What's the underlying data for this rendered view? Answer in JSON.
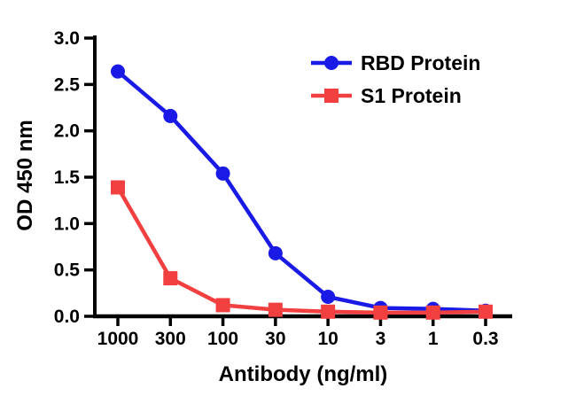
{
  "chart_data": {
    "type": "line",
    "xlabel": "Antibody (ng/ml)",
    "ylabel": "OD 450 nm",
    "categories": [
      "1000",
      "300",
      "100",
      "30",
      "10",
      "3",
      "1",
      "0.3"
    ],
    "x_axis_note": "equally spaced ordinal ticks, descending antibody concentration",
    "ylim": [
      0,
      3
    ],
    "ytick_step": 0.5,
    "ytick_labels": [
      "0.0",
      "0.5",
      "1.0",
      "1.5",
      "2.0",
      "2.5",
      "3.0"
    ],
    "grid": false,
    "legend_position": "inside-top-right",
    "axis_color": "#000000",
    "series": [
      {
        "name": "RBD Protein",
        "color": "#1a1ae6",
        "marker": "circle",
        "values": [
          2.64,
          2.16,
          1.54,
          0.68,
          0.21,
          0.09,
          0.08,
          0.06
        ]
      },
      {
        "name": "S1 Protein",
        "color": "#f24040",
        "marker": "square",
        "values": [
          1.39,
          0.41,
          0.12,
          0.07,
          0.05,
          0.04,
          0.04,
          0.05
        ]
      }
    ]
  }
}
